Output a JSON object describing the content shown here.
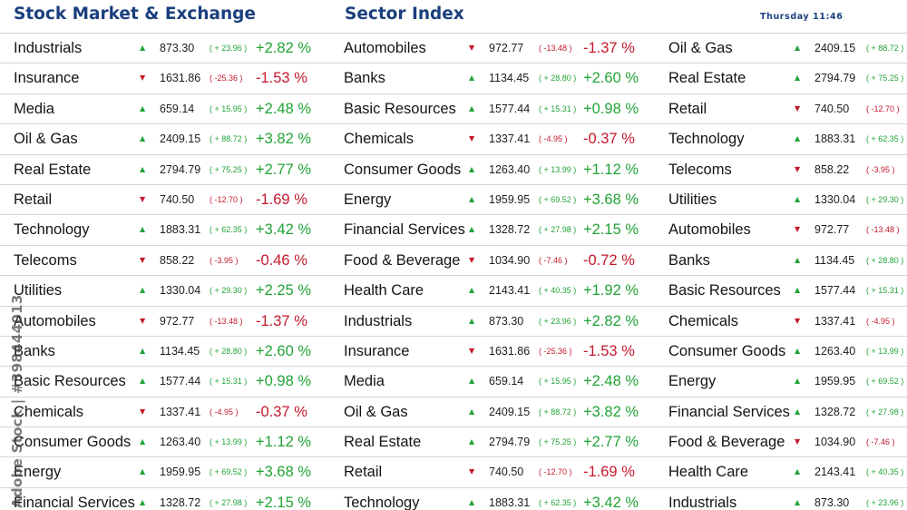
{
  "header": {
    "title": "Stock Market & Exchange",
    "sector_title": "Sector Index",
    "clock": "Thursday 11:46"
  },
  "colors": {
    "header_blue": "#1b3f7e",
    "up": "#22a337",
    "down": "#c4192d"
  },
  "icons": {
    "up": "triangle-up-icon",
    "down": "triangle-down-icon"
  },
  "watermark": "Adobe Stock | #398444013",
  "columns": [
    [
      {
        "name": "Industrials",
        "dir": "up",
        "price": "873.30",
        "change": "( + 23.96 )",
        "pct": "+2.82 %"
      },
      {
        "name": "Insurance",
        "dir": "down",
        "price": "1631.86",
        "change": "( -25.36 )",
        "pct": "-1.53 %"
      },
      {
        "name": "Media",
        "dir": "up",
        "price": "659.14",
        "change": "( + 15.95 )",
        "pct": "+2.48 %"
      },
      {
        "name": "Oil & Gas",
        "dir": "up",
        "price": "2409.15",
        "change": "( + 88.72 )",
        "pct": "+3.82 %"
      },
      {
        "name": "Real Estate",
        "dir": "up",
        "price": "2794.79",
        "change": "( + 75.25 )",
        "pct": "+2.77 %"
      },
      {
        "name": "Retail",
        "dir": "down",
        "price": "740.50",
        "change": "( -12.70 )",
        "pct": "-1.69 %"
      },
      {
        "name": "Technology",
        "dir": "up",
        "price": "1883.31",
        "change": "( + 62.35 )",
        "pct": "+3.42 %"
      },
      {
        "name": "Telecoms",
        "dir": "down",
        "price": "858.22",
        "change": "( -3.95 )",
        "pct": "-0.46 %"
      },
      {
        "name": "Utilities",
        "dir": "up",
        "price": "1330.04",
        "change": "( + 29.30 )",
        "pct": "+2.25 %"
      },
      {
        "name": "Automobiles",
        "dir": "down",
        "price": "972.77",
        "change": "( -13.48 )",
        "pct": "-1.37 %"
      },
      {
        "name": "Banks",
        "dir": "up",
        "price": "1134.45",
        "change": "( + 28.80 )",
        "pct": "+2.60 %"
      },
      {
        "name": "Basic Resources",
        "dir": "up",
        "price": "1577.44",
        "change": "( + 15.31 )",
        "pct": "+0.98 %"
      },
      {
        "name": "Chemicals",
        "dir": "down",
        "price": "1337.41",
        "change": "( -4.95 )",
        "pct": "-0.37 %"
      },
      {
        "name": "Consumer Goods",
        "dir": "up",
        "price": "1263.40",
        "change": "( + 13.99 )",
        "pct": "+1.12 %"
      },
      {
        "name": "Energy",
        "dir": "up",
        "price": "1959.95",
        "change": "( + 69.52 )",
        "pct": "+3.68 %"
      },
      {
        "name": "Financial Services",
        "dir": "up",
        "price": "1328.72",
        "change": "( + 27.98 )",
        "pct": "+2.15 %"
      }
    ],
    [
      {
        "name": "Automobiles",
        "dir": "down",
        "price": "972.77",
        "change": "( -13.48 )",
        "pct": "-1.37 %"
      },
      {
        "name": "Banks",
        "dir": "up",
        "price": "1134.45",
        "change": "( + 28.80 )",
        "pct": "+2.60 %"
      },
      {
        "name": "Basic Resources",
        "dir": "up",
        "price": "1577.44",
        "change": "( + 15.31 )",
        "pct": "+0.98 %"
      },
      {
        "name": "Chemicals",
        "dir": "down",
        "price": "1337.41",
        "change": "( -4.95 )",
        "pct": "-0.37 %"
      },
      {
        "name": "Consumer Goods",
        "dir": "up",
        "price": "1263.40",
        "change": "( + 13.99 )",
        "pct": "+1.12 %"
      },
      {
        "name": "Energy",
        "dir": "up",
        "price": "1959.95",
        "change": "( + 69.52 )",
        "pct": "+3.68 %"
      },
      {
        "name": "Financial Services",
        "dir": "up",
        "price": "1328.72",
        "change": "( + 27.98 )",
        "pct": "+2.15 %"
      },
      {
        "name": "Food & Beverage",
        "dir": "down",
        "price": "1034.90",
        "change": "( -7.46 )",
        "pct": "-0.72 %"
      },
      {
        "name": "Health Care",
        "dir": "up",
        "price": "2143.41",
        "change": "( + 40.35 )",
        "pct": "+1.92 %"
      },
      {
        "name": "Industrials",
        "dir": "up",
        "price": "873.30",
        "change": "( + 23.96 )",
        "pct": "+2.82 %"
      },
      {
        "name": "Insurance",
        "dir": "down",
        "price": "1631.86",
        "change": "( -25.36 )",
        "pct": "-1.53 %"
      },
      {
        "name": "Media",
        "dir": "up",
        "price": "659.14",
        "change": "( + 15.95 )",
        "pct": "+2.48 %"
      },
      {
        "name": "Oil & Gas",
        "dir": "up",
        "price": "2409.15",
        "change": "( + 88.72 )",
        "pct": "+3.82 %"
      },
      {
        "name": "Real Estate",
        "dir": "up",
        "price": "2794.79",
        "change": "( + 75.25 )",
        "pct": "+2.77 %"
      },
      {
        "name": "Retail",
        "dir": "down",
        "price": "740.50",
        "change": "( -12.70 )",
        "pct": "-1.69 %"
      },
      {
        "name": "Technology",
        "dir": "up",
        "price": "1883.31",
        "change": "( + 62.35 )",
        "pct": "+3.42 %"
      }
    ],
    [
      {
        "name": "Oil & Gas",
        "dir": "up",
        "price": "2409.15",
        "change": "( + 88.72 )"
      },
      {
        "name": "Real Estate",
        "dir": "up",
        "price": "2794.79",
        "change": "( + 75.25 )"
      },
      {
        "name": "Retail",
        "dir": "down",
        "price": "740.50",
        "change": "( -12.70 )"
      },
      {
        "name": "Technology",
        "dir": "up",
        "price": "1883.31",
        "change": "( + 62.35 )"
      },
      {
        "name": "Telecoms",
        "dir": "down",
        "price": "858.22",
        "change": "( -3.95 )"
      },
      {
        "name": "Utilities",
        "dir": "up",
        "price": "1330.04",
        "change": "( + 29.30 )"
      },
      {
        "name": "Automobiles",
        "dir": "down",
        "price": "972.77",
        "change": "( -13.48 )"
      },
      {
        "name": "Banks",
        "dir": "up",
        "price": "1134.45",
        "change": "( + 28.80 )"
      },
      {
        "name": "Basic Resources",
        "dir": "up",
        "price": "1577.44",
        "change": "( + 15.31 )"
      },
      {
        "name": "Chemicals",
        "dir": "down",
        "price": "1337.41",
        "change": "( -4.95 )"
      },
      {
        "name": "Consumer Goods",
        "dir": "up",
        "price": "1263.40",
        "change": "( + 13.99 )"
      },
      {
        "name": "Energy",
        "dir": "up",
        "price": "1959.95",
        "change": "( + 69.52 )"
      },
      {
        "name": "Financial Services",
        "dir": "up",
        "price": "1328.72",
        "change": "( + 27.98 )"
      },
      {
        "name": "Food & Beverage",
        "dir": "down",
        "price": "1034.90",
        "change": "( -7.46 )"
      },
      {
        "name": "Health Care",
        "dir": "up",
        "price": "2143.41",
        "change": "( + 40.35 )"
      },
      {
        "name": "Industrials",
        "dir": "up",
        "price": "873.30",
        "change": "( + 23.96 )"
      }
    ]
  ]
}
